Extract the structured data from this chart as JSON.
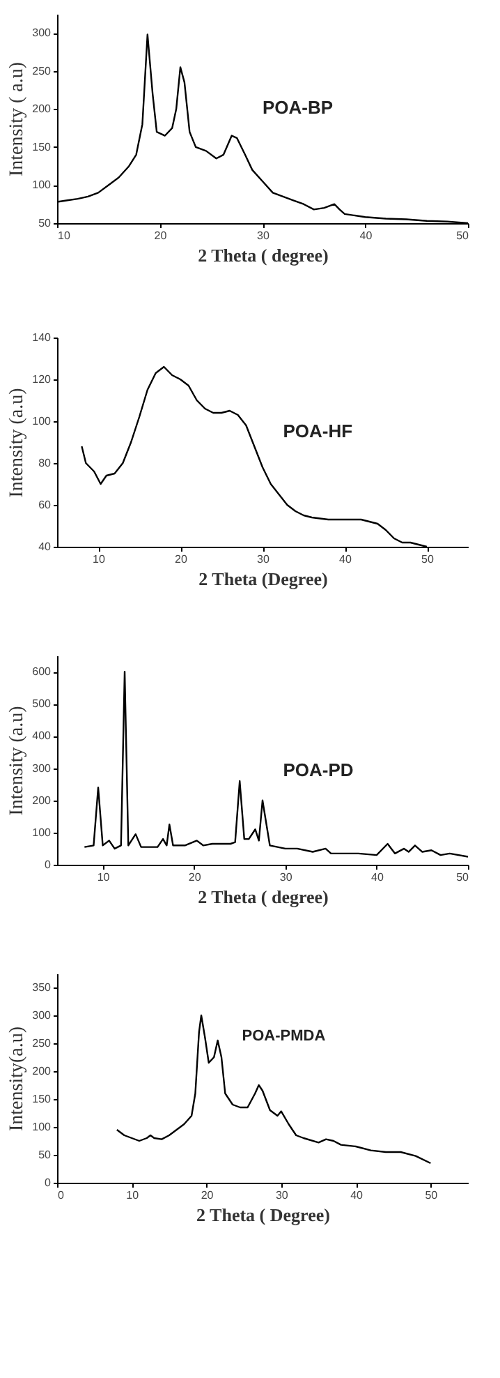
{
  "chart_data": [
    {
      "type": "line",
      "xlabel": "2 Theta ( degree)",
      "ylabel": "Intensity ( a.u)",
      "xlim": [
        10,
        50
      ],
      "ylim": [
        50,
        325
      ],
      "xticks": [
        10,
        20,
        30,
        40,
        50
      ],
      "yticks": [
        50,
        100,
        150,
        200,
        250,
        300
      ],
      "x": [
        10,
        11,
        12,
        13,
        14,
        15,
        16,
        17,
        17.7,
        18.3,
        18.8,
        19.3,
        19.7,
        20.5,
        21.2,
        21.6,
        22,
        22.4,
        22.9,
        23.5,
        24.5,
        25.5,
        26.2,
        27,
        27.5,
        28.3,
        29,
        30,
        31,
        32,
        33,
        34,
        35,
        36,
        37,
        37.5,
        38,
        40,
        42,
        44,
        46,
        48,
        50
      ],
      "series": [
        {
          "name": "POA-BP",
          "color": "#000000",
          "values": [
            78,
            80,
            82,
            85,
            90,
            100,
            110,
            125,
            140,
            180,
            298,
            220,
            170,
            165,
            175,
            200,
            255,
            235,
            170,
            150,
            145,
            135,
            140,
            165,
            162,
            140,
            120,
            105,
            90,
            85,
            80,
            75,
            68,
            70,
            75,
            68,
            62,
            58,
            56,
            55,
            53,
            52,
            50
          ]
        }
      ]
    },
    {
      "type": "line",
      "xlabel": "2 Theta (Degree)",
      "ylabel": "Intensity (a.u)",
      "xlim": [
        5,
        55
      ],
      "ylim": [
        40,
        140
      ],
      "xticks": [
        10,
        20,
        30,
        40,
        50
      ],
      "yticks": [
        40,
        60,
        80,
        100,
        120,
        140
      ],
      "x": [
        8,
        8.5,
        9.5,
        10.3,
        11,
        12,
        13,
        14,
        15,
        16,
        17,
        18,
        19,
        20,
        21,
        22,
        23,
        24,
        25,
        26,
        27,
        28,
        29,
        30,
        31,
        32,
        33,
        34,
        35,
        36,
        38,
        40,
        42,
        43,
        44,
        45,
        46,
        47,
        48,
        49,
        50
      ],
      "series": [
        {
          "name": "POA-HF",
          "color": "#000000",
          "values": [
            88,
            80,
            76,
            70,
            74,
            75,
            80,
            90,
            102,
            115,
            123,
            126,
            122,
            120,
            117,
            110,
            106,
            104,
            104,
            105,
            103,
            98,
            88,
            78,
            70,
            65,
            60,
            57,
            55,
            54,
            53,
            53,
            53,
            52,
            51,
            48,
            44,
            42,
            42,
            41,
            40
          ]
        }
      ]
    },
    {
      "type": "line",
      "xlabel": "2 Theta ( degree)",
      "ylabel": "Intensity (a.u)",
      "xlim": [
        5,
        50
      ],
      "ylim": [
        0,
        650
      ],
      "xticks": [
        10,
        20,
        30,
        40,
        50
      ],
      "yticks": [
        0,
        100,
        200,
        300,
        400,
        500,
        600
      ],
      "x": [
        8,
        9,
        9.5,
        10,
        10.7,
        11.3,
        12,
        12.4,
        12.8,
        13.6,
        14.2,
        16,
        16.6,
        17,
        17.3,
        17.7,
        19,
        20.3,
        21,
        22,
        24,
        24.5,
        25,
        25.5,
        26,
        26.7,
        27.1,
        27.5,
        27.9,
        28.3,
        30,
        31.3,
        33,
        34.4,
        35,
        38,
        40,
        41.2,
        42,
        43,
        43.5,
        44.2,
        45,
        46,
        47,
        48,
        50
      ],
      "series": [
        {
          "name": "POA-PD",
          "color": "#000000",
          "values": [
            55,
            60,
            240,
            60,
            75,
            50,
            60,
            600,
            60,
            95,
            55,
            55,
            80,
            60,
            125,
            60,
            60,
            75,
            60,
            65,
            65,
            70,
            260,
            80,
            80,
            110,
            75,
            200,
            130,
            60,
            50,
            50,
            40,
            50,
            35,
            35,
            30,
            65,
            35,
            50,
            40,
            60,
            40,
            45,
            30,
            35,
            25
          ]
        }
      ]
    },
    {
      "type": "line",
      "xlabel": "2 Theta ( Degree)",
      "ylabel": "Intensity(a.u)",
      "xlim": [
        0,
        55
      ],
      "ylim": [
        0,
        375
      ],
      "xticks": [
        0,
        10,
        20,
        30,
        40,
        50
      ],
      "yticks": [
        0,
        50,
        100,
        150,
        200,
        250,
        300,
        350
      ],
      "x": [
        8,
        9,
        10,
        11,
        12,
        12.5,
        13,
        14,
        15,
        16,
        17,
        18,
        18.5,
        19,
        19.3,
        19.8,
        20.3,
        21,
        21.5,
        22,
        22.5,
        23.5,
        24.5,
        25.5,
        26.5,
        27,
        27.5,
        28.5,
        29.5,
        30,
        31,
        32,
        33,
        35,
        36,
        37,
        38,
        40,
        42,
        44,
        46,
        48,
        50
      ],
      "series": [
        {
          "name": "POA-PMDA",
          "color": "#000000",
          "values": [
            95,
            85,
            80,
            75,
            80,
            85,
            80,
            78,
            85,
            95,
            105,
            120,
            160,
            270,
            300,
            260,
            215,
            225,
            255,
            225,
            160,
            140,
            135,
            135,
            160,
            175,
            165,
            130,
            120,
            128,
            105,
            85,
            80,
            72,
            78,
            75,
            68,
            65,
            58,
            55,
            55,
            48,
            35
          ]
        }
      ]
    }
  ]
}
